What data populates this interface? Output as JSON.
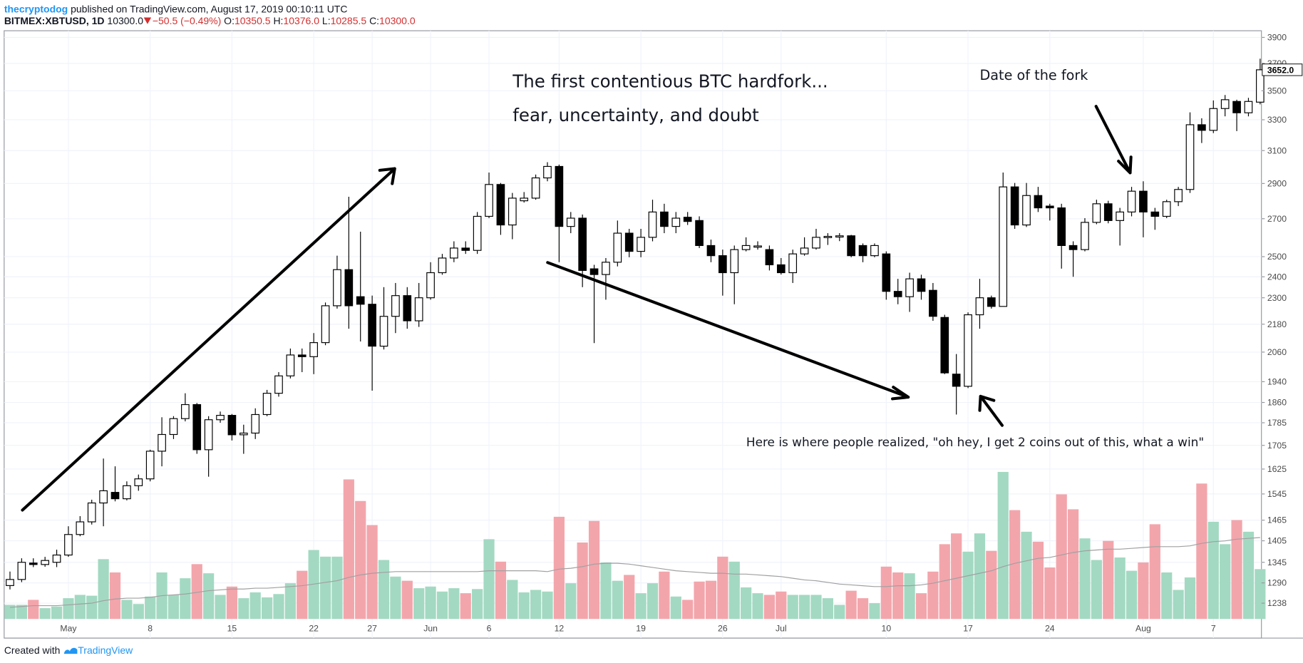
{
  "header": {
    "author": "thecryptodog",
    "published": "published on TradingView.com, August 17, 2019 00:10:11 UTC",
    "symbol": "BITMEX:XBTUSD, 1D",
    "last": "10300.0",
    "change": "−50.5 (−0.49%)",
    "o_label": "O:",
    "o": "10350.5",
    "h_label": "H:",
    "h": "10376.0",
    "l_label": "L:",
    "l": "10285.5",
    "c_label": "C:",
    "c": "10300.0"
  },
  "footer": {
    "created": "Created with",
    "brand": "TradingView"
  },
  "chart_data": {
    "type": "candlestick",
    "log": true,
    "grid": true,
    "annotations": [
      "The first contentious BTC hardfork...",
      "fear, uncertainty, and doubt",
      "Date of the fork",
      "Here is where people realized, \"oh hey, I get 2 coins out of this, what a win\""
    ],
    "categories": [
      null,
      null,
      null,
      null,
      null,
      "May",
      null,
      null,
      null,
      null,
      null,
      null,
      "8",
      null,
      null,
      null,
      null,
      null,
      null,
      "15",
      null,
      null,
      null,
      null,
      null,
      null,
      "22",
      null,
      null,
      null,
      null,
      "27",
      null,
      null,
      null,
      null,
      "Jun",
      null,
      null,
      null,
      null,
      "6",
      null,
      null,
      null,
      null,
      null,
      "12",
      null,
      null,
      null,
      null,
      null,
      null,
      "19",
      null,
      null,
      null,
      null,
      null,
      null,
      "26",
      null,
      null,
      null,
      null,
      "Jul",
      null,
      null,
      null,
      null,
      null,
      null,
      null,
      null,
      "10",
      null,
      null,
      null,
      null,
      null,
      null,
      "17",
      null,
      null,
      null,
      null,
      null,
      null,
      "24",
      null,
      null,
      null,
      null,
      null,
      null,
      null,
      "Aug",
      null,
      null,
      null,
      null,
      null,
      "7",
      null,
      null,
      null,
      null
    ],
    "open": [
      1283,
      1299,
      1343,
      1339,
      1345,
      1365,
      1423,
      1460,
      1517,
      1550,
      1530,
      1571,
      1593,
      1685,
      1743,
      1800,
      1852,
      1690,
      1796,
      1812,
      1742,
      1748,
      1815,
      1895,
      1963,
      2048,
      2041,
      2100,
      2263,
      2435,
      2305,
      2270,
      2085,
      2215,
      2310,
      2195,
      2300,
      2420,
      2493,
      2544,
      2532,
      2713,
      2894,
      2666,
      2800,
      2815,
      2933,
      3002,
      2658,
      2703,
      2439,
      2411,
      2472,
      2622,
      2527,
      2600,
      2737,
      2658,
      2708,
      2690,
      2557,
      2505,
      2420,
      2536,
      2550,
      2536,
      2459,
      2420,
      2514,
      2544,
      2600,
      2605,
      2608,
      2557,
      2505,
      2514,
      2330,
      2305,
      2390,
      2335,
      2210,
      1970,
      1922,
      2222,
      2300,
      2260,
      2880,
      2666,
      2830,
      2770,
      2760,
      2557,
      2536,
      2680,
      2783,
      2690,
      2737,
      2855,
      2737,
      2713,
      2795,
      2865,
      3267,
      3230,
      3376,
      3425,
      3347,
      3420
    ],
    "high": [
      1320,
      1356,
      1356,
      1360,
      1380,
      1447,
      1477,
      1527,
      1660,
      1634,
      1585,
      1607,
      1690,
      1805,
      1809,
      1895,
      1858,
      1809,
      1826,
      1817,
      1778,
      1838,
      1908,
      1978,
      2075,
      2075,
      2141,
      2278,
      2505,
      2823,
      2630,
      2310,
      2350,
      2370,
      2350,
      2370,
      2472,
      2514,
      2579,
      2579,
      2737,
      2965,
      2903,
      2845,
      2850,
      2953,
      3028,
      3013,
      2737,
      2723,
      2459,
      2493,
      2690,
      2645,
      2645,
      2806,
      2783,
      2737,
      2737,
      2713,
      2588,
      2536,
      2557,
      2600,
      2579,
      2557,
      2493,
      2536,
      2600,
      2645,
      2622,
      2622,
      2613,
      2568,
      2568,
      2527,
      2390,
      2420,
      2410,
      2370,
      2222,
      2052,
      2233,
      2390,
      2310,
      2965,
      2903,
      2903,
      2880,
      2783,
      2783,
      2579,
      2703,
      2806,
      2800,
      2760,
      2880,
      2913,
      2760,
      2806,
      2880,
      3350,
      3310,
      3432,
      3470,
      3437,
      3450,
      3735
    ],
    "low": [
      1273,
      1292,
      1332,
      1333,
      1332,
      1360,
      1418,
      1452,
      1447,
      1522,
      1525,
      1555,
      1585,
      1634,
      1727,
      1790,
      1676,
      1600,
      1785,
      1722,
      1676,
      1727,
      1809,
      1882,
      1953,
      1978,
      1970,
      2089,
      2250,
      2160,
      2105,
      1905,
      2071,
      2141,
      2160,
      2168,
      2291,
      2410,
      2472,
      2514,
      2514,
      2703,
      2613,
      2590,
      2790,
      2806,
      2913,
      2472,
      2622,
      2350,
      2098,
      2291,
      2451,
      2497,
      2497,
      2579,
      2622,
      2622,
      2666,
      2544,
      2472,
      2310,
      2270,
      2527,
      2536,
      2431,
      2411,
      2370,
      2505,
      2536,
      2560,
      2580,
      2497,
      2472,
      2497,
      2291,
      2270,
      2235,
      2291,
      2195,
      1970,
      1815,
      1915,
      2160,
      2250,
      2260,
      2645,
      2655,
      2737,
      2690,
      2440,
      2400,
      2527,
      2670,
      2675,
      2557,
      2713,
      2600,
      2640,
      2703,
      2770,
      2845,
      3148,
      3212,
      3323,
      3225,
      3323,
      3405
    ],
    "close": [
      1299,
      1345,
      1339,
      1350,
      1365,
      1423,
      1460,
      1517,
      1555,
      1530,
      1571,
      1593,
      1685,
      1743,
      1800,
      1852,
      1690,
      1796,
      1812,
      1742,
      1748,
      1815,
      1895,
      1963,
      2048,
      2041,
      2100,
      2263,
      2435,
      2263,
      2270,
      2085,
      2215,
      2310,
      2195,
      2300,
      2420,
      2493,
      2544,
      2532,
      2713,
      2894,
      2666,
      2815,
      2815,
      2933,
      3002,
      2658,
      2703,
      2431,
      2411,
      2472,
      2622,
      2527,
      2600,
      2737,
      2658,
      2703,
      2685,
      2557,
      2505,
      2420,
      2536,
      2557,
      2555,
      2459,
      2420,
      2514,
      2544,
      2600,
      2605,
      2608,
      2505,
      2505,
      2557,
      2330,
      2305,
      2390,
      2330,
      2215,
      1975,
      1922,
      2222,
      2300,
      2260,
      2880,
      2666,
      2830,
      2760,
      2760,
      2557,
      2536,
      2680,
      2783,
      2690,
      2737,
      2855,
      2737,
      2713,
      2795,
      2865,
      3267,
      3230,
      3376,
      3437,
      3347,
      3425,
      3652
    ],
    "volume": [
      17,
      17,
      23,
      13,
      15,
      25,
      29,
      28,
      72,
      56,
      23,
      18,
      27,
      56,
      29,
      49,
      66,
      55,
      29,
      39,
      25,
      32,
      26,
      30,
      43,
      58,
      83,
      75,
      75,
      168,
      142,
      113,
      71,
      51,
      46,
      37,
      39,
      33,
      37,
      31,
      36,
      96,
      69,
      47,
      32,
      35,
      33,
      123,
      43,
      92,
      118,
      68,
      46,
      53,
      31,
      43,
      57,
      27,
      23,
      45,
      46,
      75,
      69,
      38,
      31,
      29,
      33,
      29,
      29,
      29,
      25,
      17,
      34,
      25,
      19,
      63,
      56,
      55,
      31,
      57,
      90,
      103,
      81,
      103,
      82,
      177,
      131,
      105,
      93,
      62,
      150,
      132,
      97,
      71,
      94,
      74,
      58,
      68,
      114,
      56,
      35,
      50,
      163,
      117,
      90,
      119,
      105,
      60
    ],
    "volume_ma": [
      14,
      15,
      16,
      16,
      16,
      17,
      18,
      19,
      22,
      24,
      25,
      25,
      26,
      28,
      29,
      30,
      32,
      34,
      35,
      36,
      36,
      37,
      37,
      38,
      39,
      40,
      42,
      44,
      46,
      50,
      53,
      55,
      56,
      57,
      57,
      57,
      57,
      57,
      57,
      57,
      57,
      58,
      58,
      58,
      58,
      58,
      57,
      60,
      61,
      63,
      66,
      67,
      67,
      66,
      64,
      62,
      60,
      58,
      57,
      56,
      55,
      55,
      54,
      54,
      53,
      52,
      51,
      49,
      47,
      46,
      44,
      42,
      41,
      40,
      39,
      39,
      40,
      40,
      41,
      43,
      46,
      49,
      52,
      55,
      58,
      63,
      67,
      70,
      73,
      74,
      77,
      80,
      82,
      83,
      84,
      84,
      85,
      86,
      87,
      87,
      87,
      88,
      91,
      93,
      94,
      96,
      97,
      98
    ],
    "up_color": "#ffffff",
    "down_color": "#000000",
    "volume_up_color": "#a3d9c2",
    "volume_down_color": "#f3a5ac",
    "volume_ma_color": "#a0a0a0",
    "last_close_label": "3652.0",
    "ylim": [
      1199,
      3953
    ],
    "yticks": [
      3900,
      3700,
      3500,
      3300,
      3100,
      2900,
      2700,
      2500,
      2400,
      2300,
      2180,
      2060,
      1940,
      1860,
      1785,
      1705,
      1625,
      1545,
      1465,
      1405,
      1345,
      1290,
      1238
    ]
  }
}
